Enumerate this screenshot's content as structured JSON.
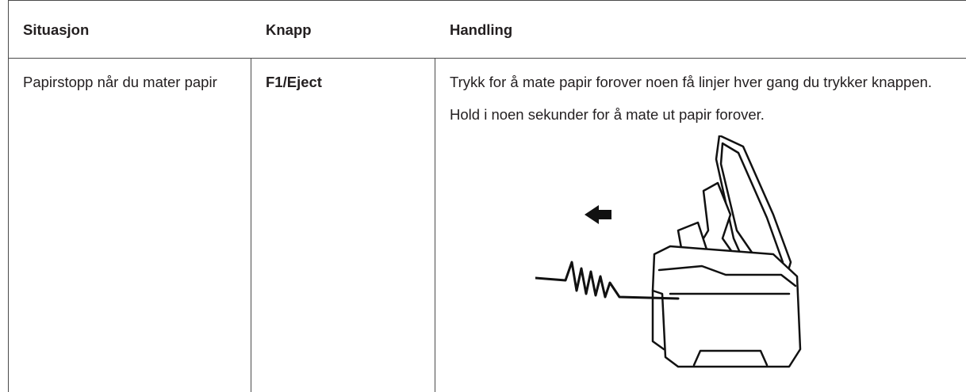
{
  "table": {
    "headers": [
      "Situasjon",
      "Knapp",
      "Handling"
    ],
    "rows": [
      [
        "Papirstopp når du mater papir",
        "F1/Eject",
        [
          "Trykk for å mate papir forover noen få linjer hver gang du trykker knappen.",
          "Hold i noen sekunder for å mate ut papir forover."
        ]
      ]
    ]
  }
}
